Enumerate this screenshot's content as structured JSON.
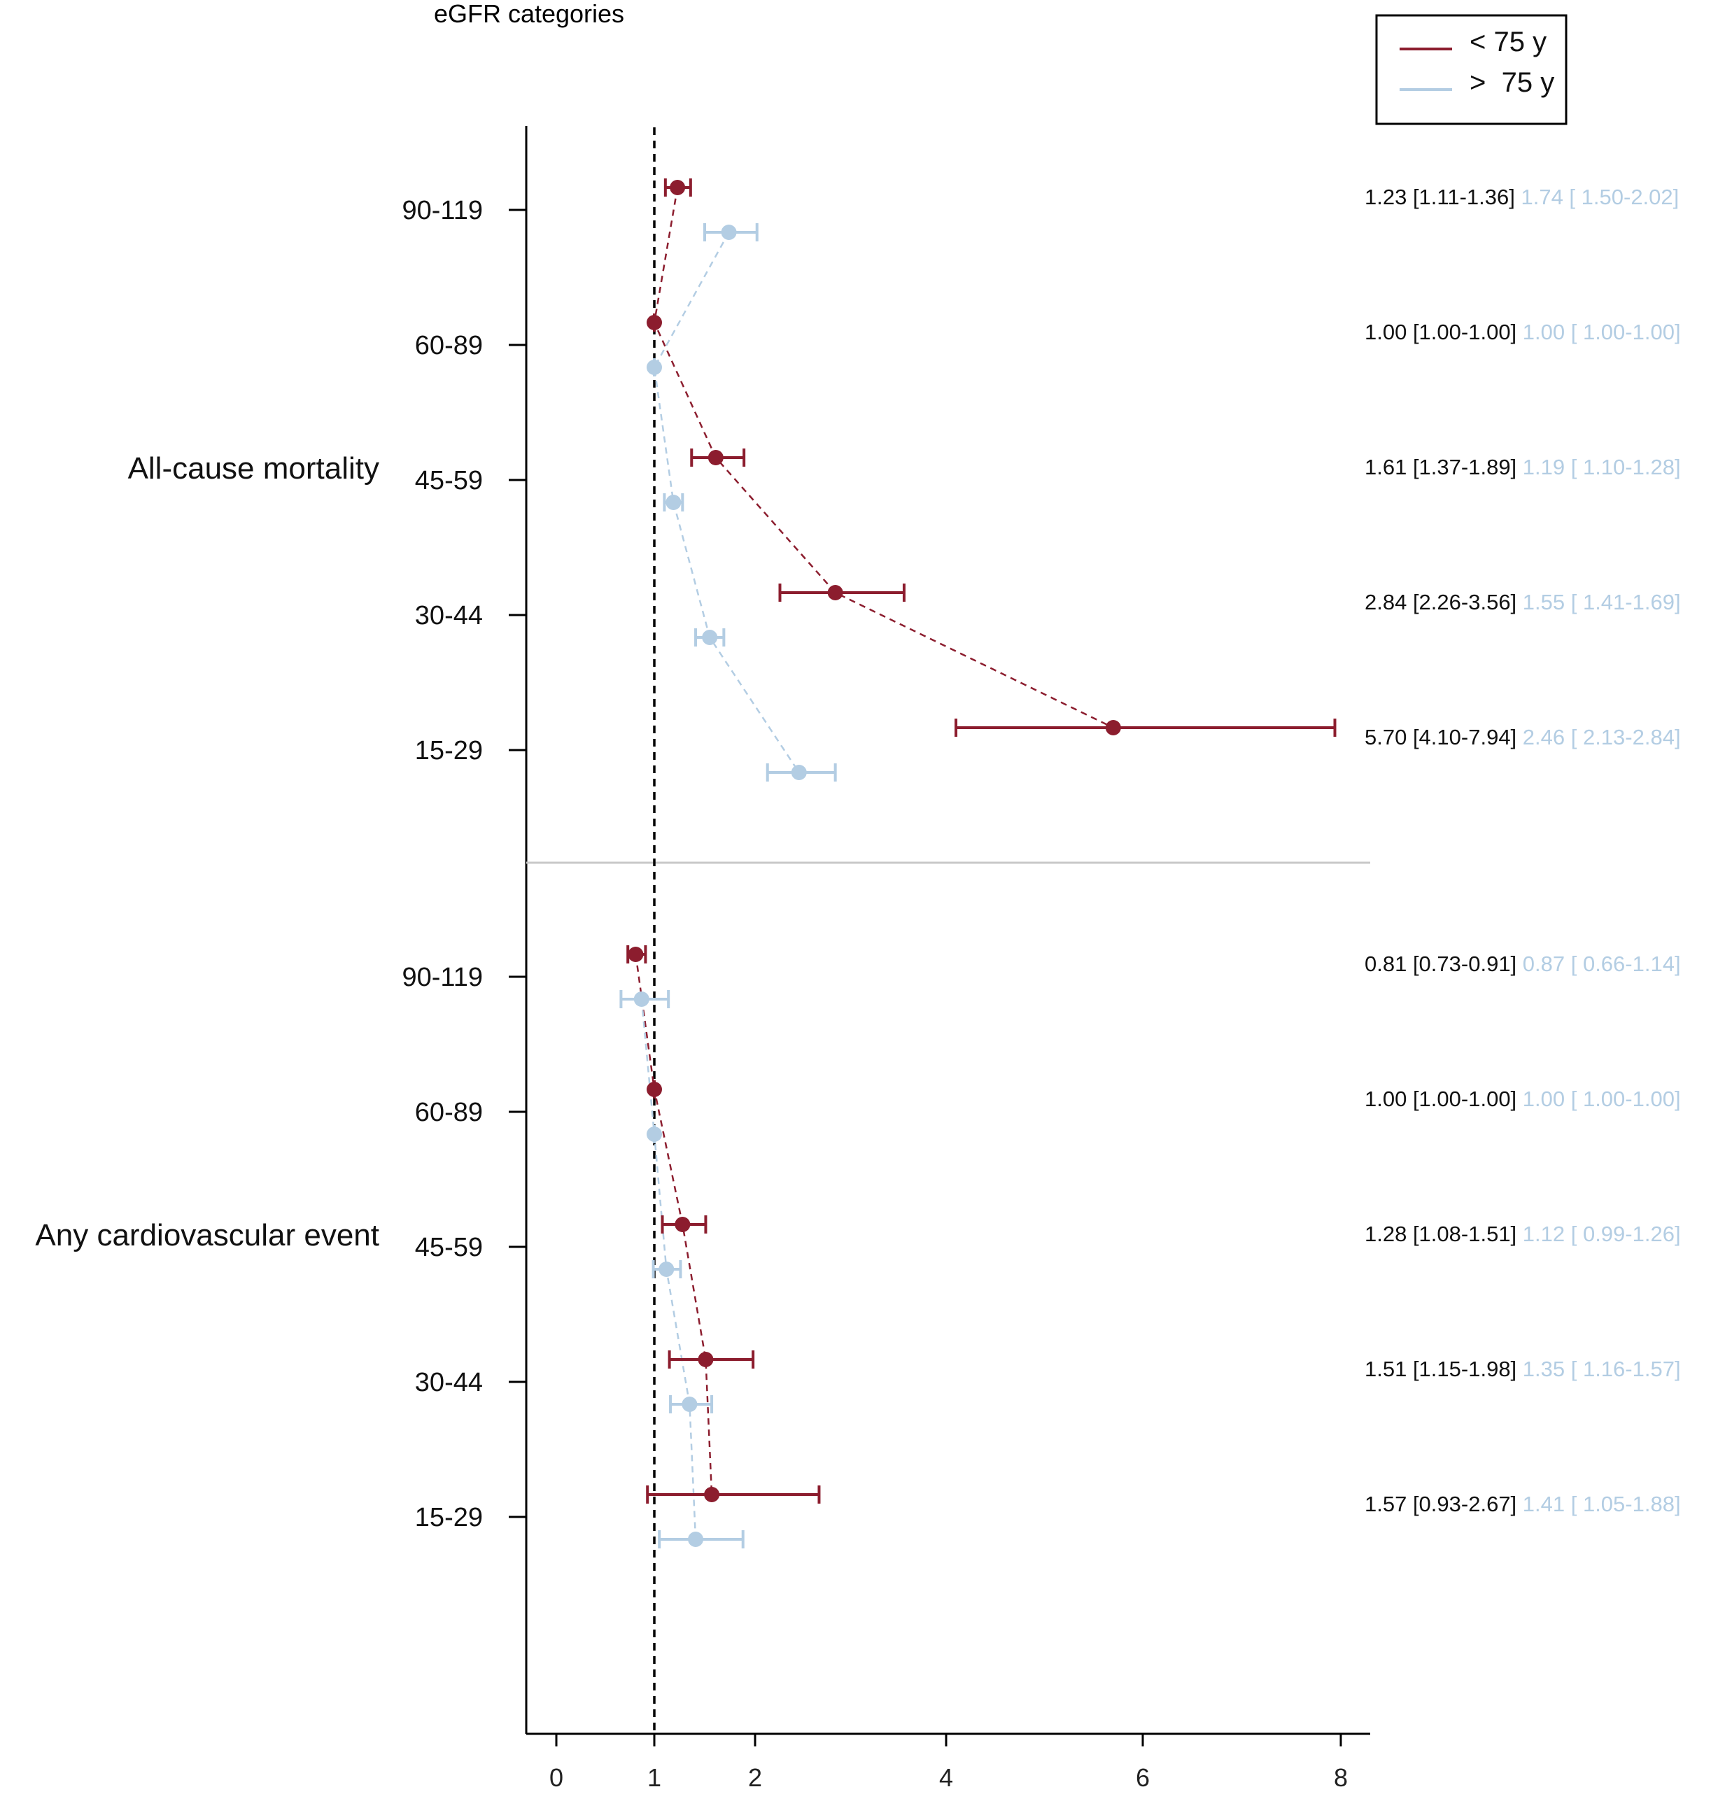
{
  "chart_data": {
    "type": "forest",
    "title": "eGFR categories",
    "xlabel": "",
    "ylabel": "",
    "x_ticks": [
      {
        "label": "0",
        "value": 0
      },
      {
        "label": "1",
        "value": 1
      },
      {
        "label": "2",
        "value": 2
      },
      {
        "label": "4",
        "value": 4
      },
      {
        "label": "6",
        "value": 6
      },
      {
        "label": "8",
        "value": 8
      }
    ],
    "reference_line": 1,
    "legend": {
      "position": "top-right",
      "entries": [
        {
          "key": "young",
          "label": "< 75 y",
          "color": "#8c1d2e"
        },
        {
          "key": "old",
          "label": ">  75 y",
          "color": "#b3cde3"
        }
      ]
    },
    "groups": [
      {
        "name": "All-cause mortality",
        "rows": [
          {
            "category": "90-119",
            "young": {
              "est": 1.23,
              "lo": 1.11,
              "hi": 1.36,
              "text": "1.23 [1.11-1.36]"
            },
            "old": {
              "est": 1.74,
              "lo": 1.5,
              "hi": 2.02,
              "text": "1.74 [ 1.50-2.02]"
            }
          },
          {
            "category": "60-89",
            "young": {
              "est": 1.0,
              "lo": 1.0,
              "hi": 1.0,
              "text": "1.00 [1.00-1.00]"
            },
            "old": {
              "est": 1.0,
              "lo": 1.0,
              "hi": 1.0,
              "text": "1.00 [ 1.00-1.00]"
            }
          },
          {
            "category": "45-59",
            "young": {
              "est": 1.61,
              "lo": 1.37,
              "hi": 1.89,
              "text": "1.61 [1.37-1.89]"
            },
            "old": {
              "est": 1.19,
              "lo": 1.1,
              "hi": 1.28,
              "text": "1.19 [ 1.10-1.28]"
            }
          },
          {
            "category": "30-44",
            "young": {
              "est": 2.84,
              "lo": 2.26,
              "hi": 3.56,
              "text": "2.84 [2.26-3.56]"
            },
            "old": {
              "est": 1.55,
              "lo": 1.41,
              "hi": 1.69,
              "text": "1.55 [ 1.41-1.69]"
            }
          },
          {
            "category": "15-29",
            "young": {
              "est": 5.7,
              "lo": 4.1,
              "hi": 7.94,
              "text": "5.70 [4.10-7.94]"
            },
            "old": {
              "est": 2.46,
              "lo": 2.13,
              "hi": 2.84,
              "text": "2.46 [ 2.13-2.84]"
            }
          }
        ]
      },
      {
        "name": "Any cardiovascular event",
        "rows": [
          {
            "category": "90-119",
            "young": {
              "est": 0.81,
              "lo": 0.73,
              "hi": 0.91,
              "text": "0.81 [0.73-0.91]"
            },
            "old": {
              "est": 0.87,
              "lo": 0.66,
              "hi": 1.14,
              "text": "0.87 [ 0.66-1.14]"
            }
          },
          {
            "category": "60-89",
            "young": {
              "est": 1.0,
              "lo": 1.0,
              "hi": 1.0,
              "text": "1.00 [1.00-1.00]"
            },
            "old": {
              "est": 1.0,
              "lo": 1.0,
              "hi": 1.0,
              "text": "1.00 [ 1.00-1.00]"
            }
          },
          {
            "category": "45-59",
            "young": {
              "est": 1.28,
              "lo": 1.08,
              "hi": 1.51,
              "text": "1.28 [1.08-1.51]"
            },
            "old": {
              "est": 1.12,
              "lo": 0.99,
              "hi": 1.26,
              "text": "1.12 [ 0.99-1.26]"
            }
          },
          {
            "category": "30-44",
            "young": {
              "est": 1.51,
              "lo": 1.15,
              "hi": 1.98,
              "text": "1.51 [1.15-1.98]"
            },
            "old": {
              "est": 1.35,
              "lo": 1.16,
              "hi": 1.57,
              "text": "1.35 [ 1.16-1.57]"
            }
          },
          {
            "category": "15-29",
            "young": {
              "est": 1.57,
              "lo": 0.93,
              "hi": 2.67,
              "text": "1.57 [0.93-2.67]"
            },
            "old": {
              "est": 1.41,
              "lo": 1.05,
              "hi": 1.88,
              "text": "1.41 [ 1.05-1.88]"
            }
          }
        ]
      }
    ]
  }
}
